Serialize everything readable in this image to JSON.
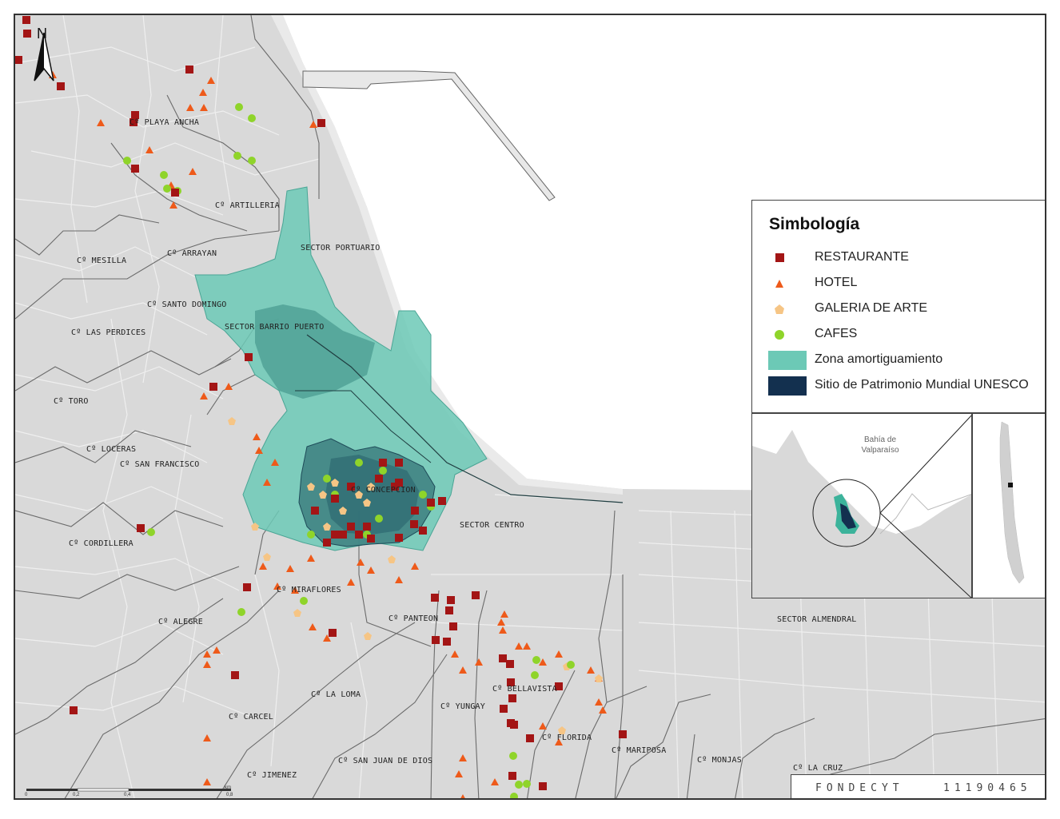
{
  "legend": {
    "title": "Simbología",
    "items": [
      {
        "label": "RESTAURANTE",
        "symbol": "square",
        "color": "#a31515"
      },
      {
        "label": "HOTEL",
        "symbol": "triangle",
        "color": "#ee5a1a"
      },
      {
        "label": "GALERIA DE ARTE",
        "symbol": "pentagon",
        "color": "#f6c585"
      },
      {
        "label": "CAFES",
        "symbol": "circle",
        "color": "#8fd42a"
      },
      {
        "label": "Zona amortiguamiento",
        "symbol": "box",
        "color": "#6cc9b6"
      },
      {
        "label": "Sitio de Patrimonio Mundial UNESCO",
        "symbol": "box",
        "color": "#13304f"
      }
    ]
  },
  "neighborhoods": [
    "Cº PLAYA ANCHA",
    "Cº ARTILLERIA",
    "Cº MESILLA",
    "Cº ARRAYAN",
    "SECTOR PORTUARIO",
    "Cº SANTO DOMINGO",
    "Cº LAS PERDICES",
    "SECTOR BARRIO PUERTO",
    "Cº TORO",
    "Cº LOCERAS",
    "Cº SAN FRANCISCO",
    "Cº CONCEPCION",
    "SECTOR CENTRO",
    "Cº CORDILLERA",
    "Cº MIRAFLORES",
    "Cº ALEGRE",
    "Cº PANTEON",
    "SECTOR ALMENDRAL",
    "Cº BELLAVISTA",
    "Cº YUNGAY",
    "Cº LA LOMA",
    "Cº CARCEL",
    "Cº FLORIDA",
    "Cº MARIPOSA",
    "Cº MONJAS",
    "Cº SAN JUAN DE DIOS",
    "Cº JIMENEZ",
    "Cº LA CRUZ"
  ],
  "north_arrow": "N",
  "inset": {
    "bay_label_1": "Bahía de",
    "bay_label_2": "Valparaíso"
  },
  "scale": {
    "unit": "km",
    "ticks": [
      "0",
      "0,2",
      "0,4",
      "0,8"
    ]
  },
  "credit": {
    "program": "FONDECYT",
    "code": "11190465"
  },
  "colors": {
    "land": "#d9d9d9",
    "water": "#ffffff",
    "street": "#f2f2f2",
    "boundary": "#666666",
    "buffer": "#6cc9b6",
    "unesco": "#13304f"
  }
}
